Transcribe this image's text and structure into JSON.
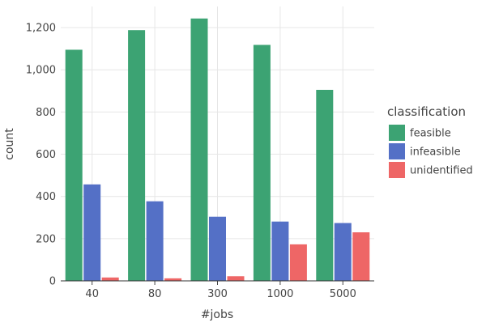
{
  "chart_data": {
    "type": "bar",
    "categories": [
      "40",
      "80",
      "300",
      "1000",
      "5000"
    ],
    "series": [
      {
        "name": "feasible",
        "color": "#3ca373",
        "values": [
          1095,
          1188,
          1243,
          1118,
          905
        ]
      },
      {
        "name": "infeasible",
        "color": "#5470c6",
        "values": [
          457,
          377,
          304,
          281,
          274
        ]
      },
      {
        "name": "unidentified",
        "color": "#ee6666",
        "values": [
          16,
          12,
          22,
          173,
          230
        ]
      }
    ],
    "xlabel": "#jobs",
    "ylabel": "count",
    "ylim": [
      0,
      1300
    ],
    "yticks": [
      0,
      200,
      400,
      600,
      800,
      1000,
      1200
    ],
    "ytick_labels": [
      "0",
      "200",
      "400",
      "600",
      "800",
      "1,000",
      "1,200"
    ],
    "legend": {
      "title": "classification",
      "position": "right"
    },
    "grid": true
  }
}
